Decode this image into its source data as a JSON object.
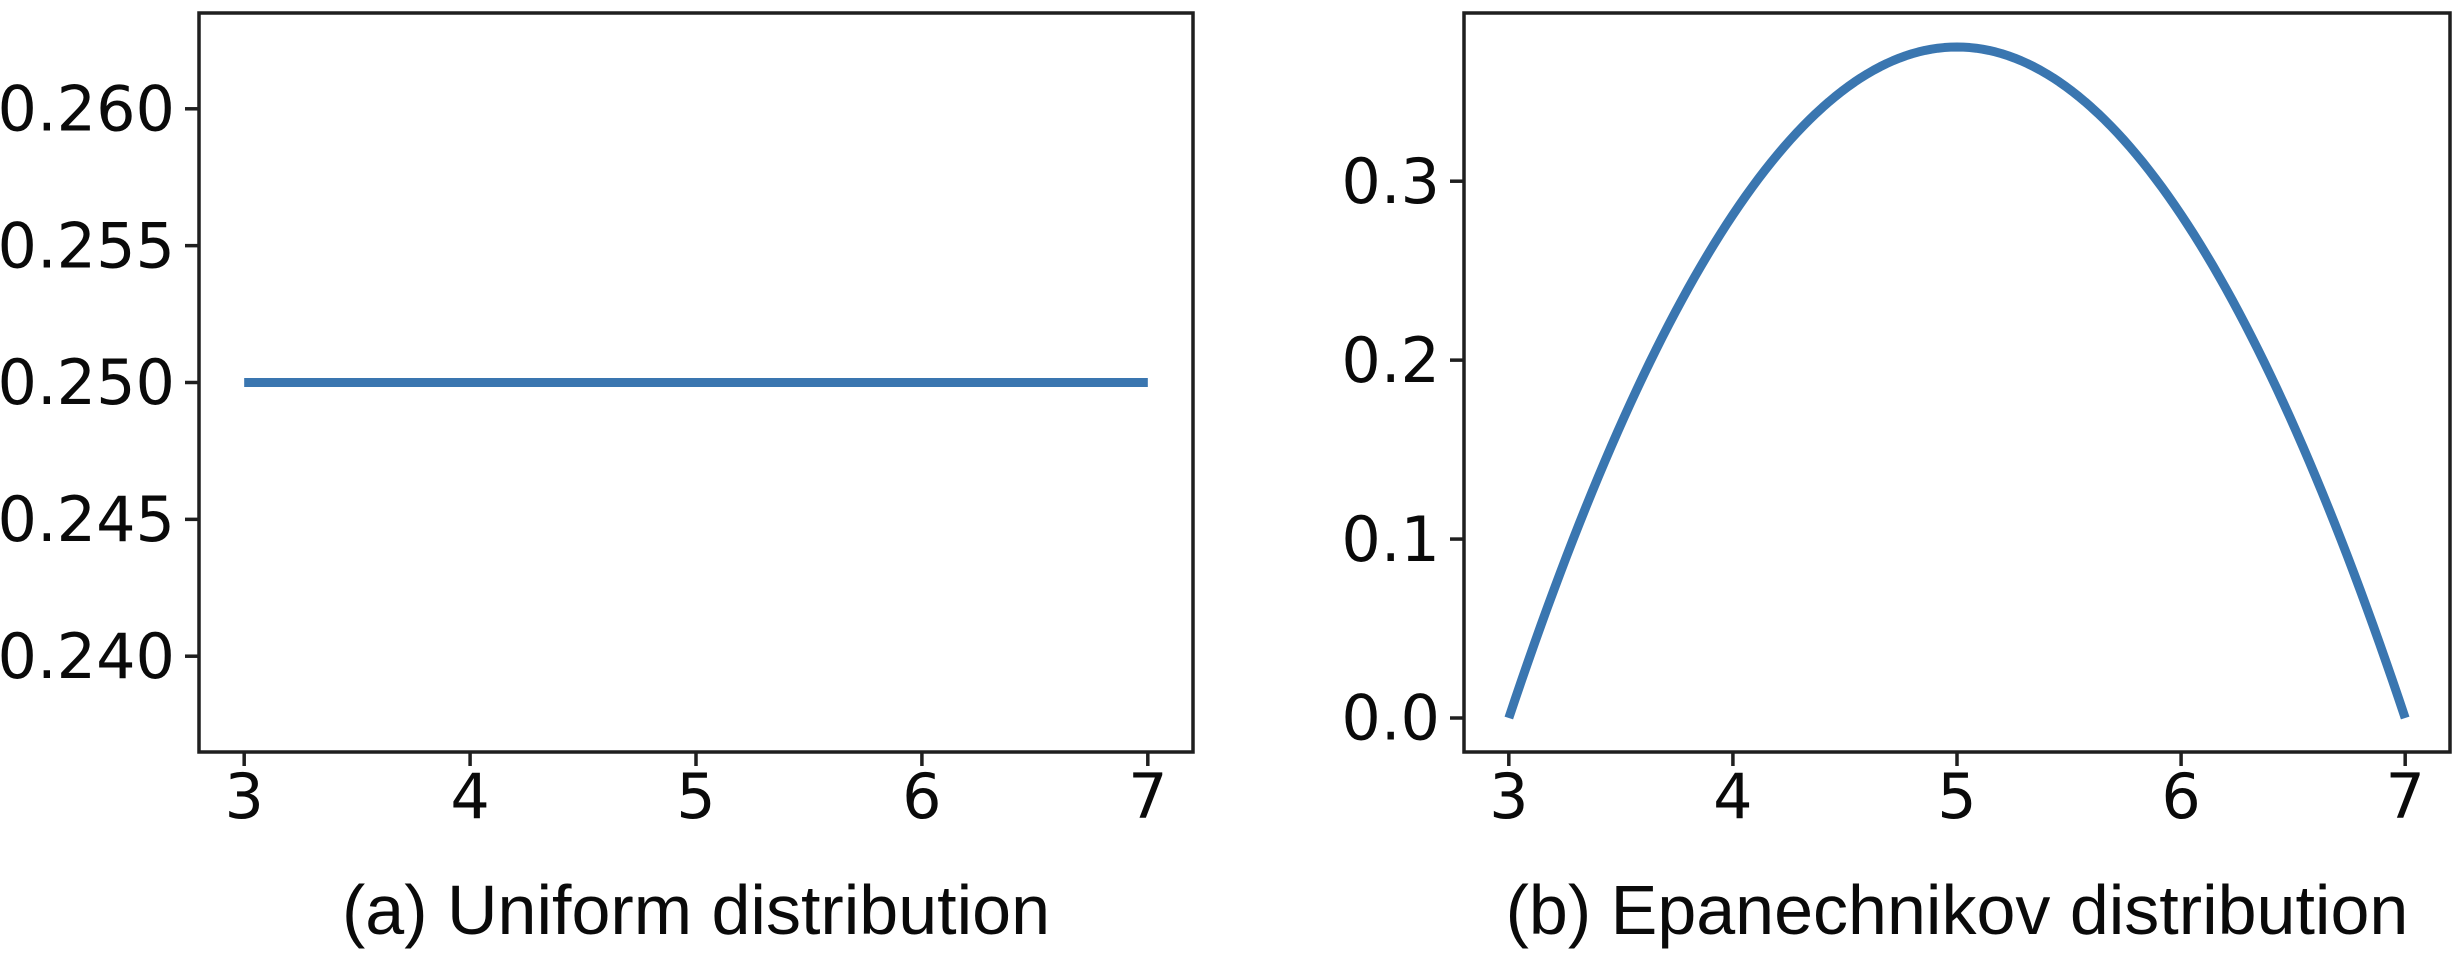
{
  "figure": {
    "background": "#ffffff",
    "line_color": "#3a76b0",
    "axis_color": "#1f1f1f",
    "text_color": "#0a0a0a"
  },
  "chart_data": [
    {
      "id": "uniform",
      "type": "line",
      "caption": "(a) Uniform distribution",
      "title": "",
      "xlabel": "",
      "ylabel": "",
      "grid": false,
      "legend": null,
      "xlim": [
        2.8,
        7.2
      ],
      "ylim": [
        0.2365,
        0.2635
      ],
      "x_ticks": [
        3,
        4,
        5,
        6,
        7
      ],
      "x_tick_labels": [
        "3",
        "4",
        "5",
        "6",
        "7"
      ],
      "y_ticks": [
        0.24,
        0.245,
        0.25,
        0.255,
        0.26
      ],
      "y_tick_labels": [
        "0.240",
        "0.245",
        "0.250",
        "0.255",
        "0.260"
      ],
      "series": [
        {
          "name": "uniform-pdf",
          "color": "#3a76b0",
          "linewidth": 9,
          "function": "constant",
          "value": 0.25,
          "x_start": 3,
          "x_end": 7,
          "points": [
            [
              3,
              0.25
            ],
            [
              7,
              0.25
            ]
          ]
        }
      ]
    },
    {
      "id": "epanechnikov",
      "type": "line",
      "caption": "(b) Epanechnikov distribution",
      "title": "",
      "xlabel": "",
      "ylabel": "",
      "grid": false,
      "legend": null,
      "xlim": [
        2.8,
        7.2
      ],
      "ylim": [
        -0.019,
        0.394
      ],
      "x_ticks": [
        3,
        4,
        5,
        6,
        7
      ],
      "x_tick_labels": [
        "3",
        "4",
        "5",
        "6",
        "7"
      ],
      "y_ticks": [
        0.0,
        0.1,
        0.2,
        0.3
      ],
      "y_tick_labels": [
        "0.0",
        "0.1",
        "0.2",
        "0.3"
      ],
      "series": [
        {
          "name": "epanechnikov-pdf",
          "color": "#3a76b0",
          "linewidth": 9,
          "function": "epanechnikov",
          "center": 5,
          "halfwidth": 2,
          "peak": 0.375,
          "x_start": 3,
          "x_end": 7,
          "points": [
            [
              3,
              0.0
            ],
            [
              3.5,
              0.1641
            ],
            [
              4,
              0.2813
            ],
            [
              4.5,
              0.3516
            ],
            [
              5,
              0.375
            ],
            [
              5.5,
              0.3516
            ],
            [
              6,
              0.2813
            ],
            [
              6.5,
              0.1641
            ],
            [
              7,
              0.0
            ]
          ]
        }
      ]
    }
  ]
}
